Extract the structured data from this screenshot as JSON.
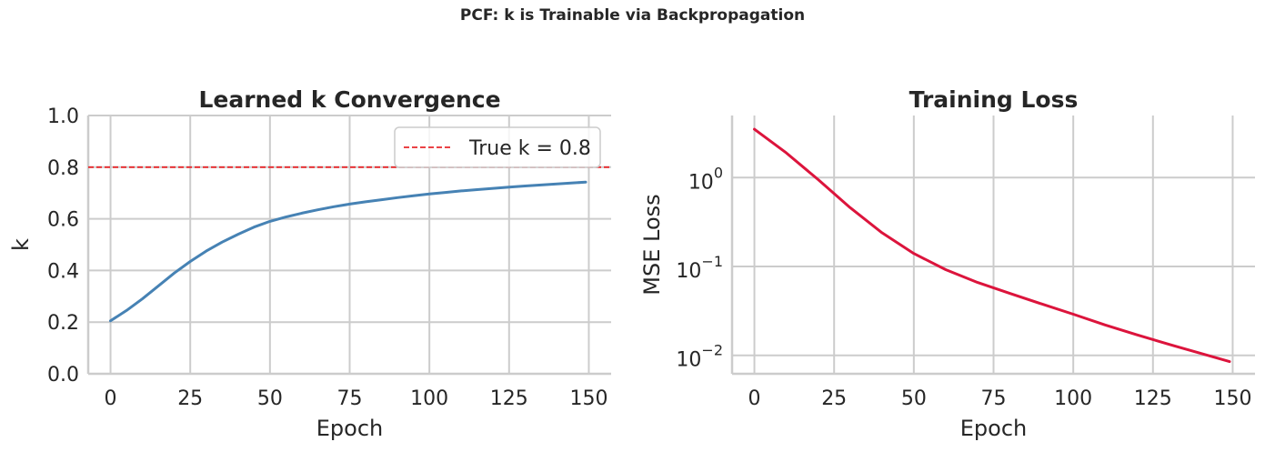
{
  "figure_title": "PCF: k is Trainable via Backpropagation",
  "chart_data": [
    {
      "type": "line",
      "title": "Learned k Convergence",
      "xlabel": "Epoch",
      "ylabel": "k",
      "xlim": [
        -7,
        157
      ],
      "ylim": [
        0.0,
        1.0
      ],
      "xticks": [
        0,
        25,
        50,
        75,
        100,
        125,
        150
      ],
      "xtick_labels": [
        "0",
        "25",
        "50",
        "75",
        "100",
        "125",
        "150"
      ],
      "yticks": [
        0.0,
        0.2,
        0.4,
        0.6,
        0.8,
        1.0
      ],
      "ytick_labels": [
        "0.0",
        "0.2",
        "0.4",
        "0.6",
        "0.8",
        "1.0"
      ],
      "grid": true,
      "legend": "upper right",
      "series": [
        {
          "color": "#4682b4",
          "x": [
            0,
            5,
            10,
            15,
            20,
            25,
            30,
            35,
            40,
            45,
            50,
            55,
            60,
            65,
            70,
            75,
            80,
            85,
            90,
            95,
            100,
            105,
            110,
            115,
            120,
            125,
            130,
            135,
            140,
            145,
            149
          ],
          "y": [
            0.205,
            0.245,
            0.29,
            0.34,
            0.39,
            0.435,
            0.475,
            0.51,
            0.54,
            0.568,
            0.59,
            0.607,
            0.622,
            0.635,
            0.647,
            0.657,
            0.666,
            0.674,
            0.682,
            0.689,
            0.696,
            0.702,
            0.708,
            0.713,
            0.718,
            0.723,
            0.727,
            0.731,
            0.735,
            0.739,
            0.742
          ]
        }
      ],
      "hlines": [
        {
          "name": "True k = 0.8",
          "y": 0.8,
          "color": "#e8292c",
          "style": "dashed"
        }
      ]
    },
    {
      "type": "line",
      "title": "Training Loss",
      "xlabel": "Epoch",
      "ylabel": "MSE Loss",
      "yscale": "log",
      "xlim": [
        -7,
        157
      ],
      "ylim": [
        0.0062,
        5.0
      ],
      "xticks": [
        0,
        25,
        50,
        75,
        100,
        125,
        150
      ],
      "xtick_labels": [
        "0",
        "25",
        "50",
        "75",
        "100",
        "125",
        "150"
      ],
      "yticks": [
        0.01,
        0.1,
        1
      ],
      "ytick_labels": [
        {
          "base": "10",
          "exp": "−2"
        },
        {
          "base": "10",
          "exp": "−1"
        },
        {
          "base": "10",
          "exp": "0"
        }
      ],
      "grid": true,
      "series": [
        {
          "color": "#dc143c",
          "x": [
            0,
            10,
            20,
            30,
            40,
            50,
            60,
            70,
            80,
            90,
            100,
            110,
            120,
            130,
            140,
            149
          ],
          "y": [
            3.5,
            1.9,
            0.95,
            0.46,
            0.24,
            0.14,
            0.092,
            0.066,
            0.05,
            0.038,
            0.029,
            0.022,
            0.017,
            0.0133,
            0.0105,
            0.0085
          ]
        }
      ]
    }
  ]
}
